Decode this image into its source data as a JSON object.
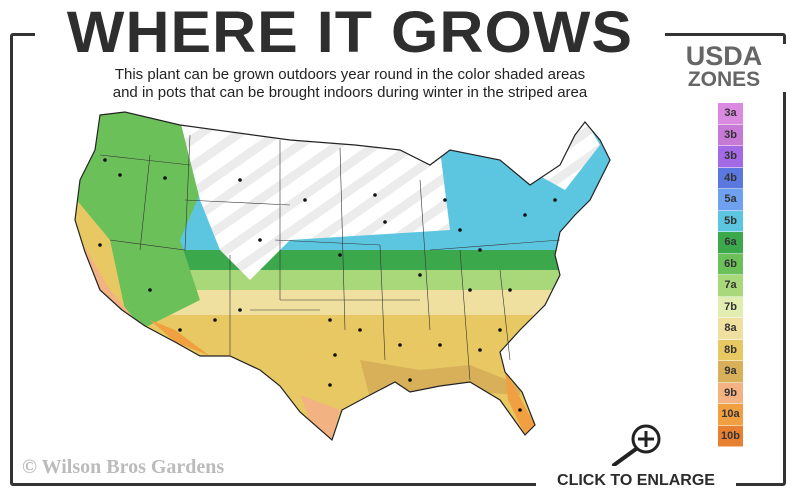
{
  "title": "WHERE IT GROWS",
  "subtitle_line1": "This plant can be grown outdoors year round in the color shaded areas",
  "subtitle_line2": "and in pots that can be brought indoors during winter in the striped area",
  "legend": {
    "title_line1": "USDA",
    "title_line2": "ZONES",
    "zones": [
      {
        "label": "3a",
        "color": "#d98ae0"
      },
      {
        "label": "3b",
        "color": "#c67ad6"
      },
      {
        "label": "3b",
        "color": "#a46ae6"
      },
      {
        "label": "4b",
        "color": "#5a78e0"
      },
      {
        "label": "5a",
        "color": "#6ea2f0"
      },
      {
        "label": "5b",
        "color": "#5cc6e0"
      },
      {
        "label": "6a",
        "color": "#3ca84c"
      },
      {
        "label": "6b",
        "color": "#6cc05a"
      },
      {
        "label": "7a",
        "color": "#a8d87a"
      },
      {
        "label": "7b",
        "color": "#e2edb2"
      },
      {
        "label": "8a",
        "color": "#f0e0a0"
      },
      {
        "label": "8b",
        "color": "#e8c862"
      },
      {
        "label": "9a",
        "color": "#d8b05a"
      },
      {
        "label": "9b",
        "color": "#f2b282"
      },
      {
        "label": "10a",
        "color": "#f0a040"
      },
      {
        "label": "10b",
        "color": "#e88032"
      }
    ]
  },
  "copyright": "© Wilson Bros Gardens",
  "enlarge_label": "CLICK TO ENLARGE",
  "icons": {
    "enlarge": "magnifier-plus-icon"
  }
}
